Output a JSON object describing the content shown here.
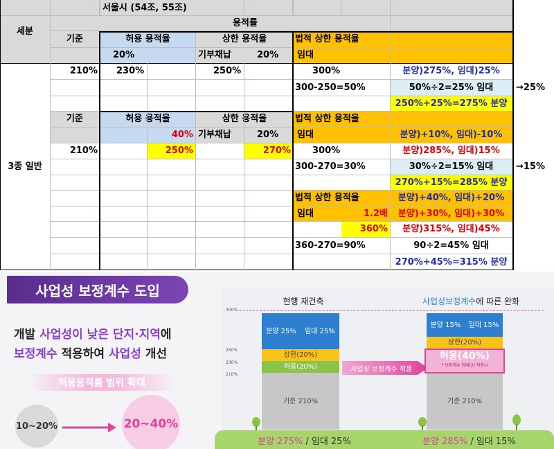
{
  "table": {
    "header": {
      "seoul": "서울시 (54조, 55조)",
      "floor_area_ratio": "용적률",
      "category": "세분",
      "standard": "기준",
      "allowed": "허용 용적율",
      "upper": "상한 용적율",
      "legal_upper": "법적 상한 용적율",
      "allowed_pct": "20%",
      "donation": "기부채납",
      "donation_pct": "20%",
      "rental": "임대"
    },
    "zone": "3종 일반",
    "block1": {
      "base": "210%",
      "allowed": "230%",
      "upper": "250%",
      "legal": "300%",
      "result": "분양)275%, 임대)25%",
      "calc": "300-250=50%",
      "half": "50%÷2=25% 임대",
      "arrow": "→25%",
      "total": "250%+25%=275% 분양"
    },
    "block2": {
      "standard": "기준",
      "allowed": "허용 용적율",
      "upper": "상한 용적율",
      "legal_upper": "법적 상한 용적율",
      "allowed_pct": "40%",
      "donation": "기부채납",
      "donation_pct": "20%",
      "rental": "임대",
      "change": "분양)+10%, 임대)-10%",
      "base": "210%",
      "allowed_val": "250%",
      "upper_val": "270%",
      "legal": "300%",
      "result": "분양)285%, 임대)15%",
      "calc": "300-270=30%",
      "half": "30%÷2=15% 임대",
      "arrow": "→15%",
      "total": "270%+15%=285% 분양"
    },
    "block3": {
      "legal_upper": "법적 상한 용적율",
      "change1": "분양)+40%, 임대)+20%",
      "rental": "임대",
      "multiplier": "1.2배",
      "change2": "분양)+30%, 임대)+30%",
      "legal_val": "360%",
      "result": "분양)315%, 임대)45%",
      "calc": "360-270=90%",
      "half": "90÷2=45% 임대",
      "total": "270%+45%=315% 분양"
    }
  },
  "info": {
    "title": "사업성 보정계수 도입",
    "line1_a": "개발 ",
    "line1_b": "사업성이 낮은 단지·지역",
    "line1_c": "에",
    "line2_a": "보정계수",
    "line2_b": " 적용하여 ",
    "line2_c": "사업성",
    "line2_d": " 개선",
    "range_label": "허용용적률 범위 확대",
    "from": "10~20%",
    "to": "20~40%",
    "current_label": "현행 재건축",
    "new_label_a": "사업성보정계수",
    "new_label_b": "에 따른 완화",
    "axis": [
      "300%",
      "250%",
      "230%",
      "210%"
    ],
    "left": {
      "sale": "분양 25%",
      "rent": "임대 25%",
      "upper": "상한(20%)",
      "allowed": "허용(20%)",
      "base": "기준 210%",
      "ground_a": "분양 275%",
      "ground_b": " / 임대 25%"
    },
    "apply_label": "사업성 보정계수 적용",
    "right": {
      "sale": "분양 15%",
      "rent": "임대 15%",
      "upper": "상한(20%)",
      "allowed": "허용(40%)",
      "note": "* 보정계수 최대(2) 적용시",
      "base": "기준 210%",
      "ground_a": "분양 285%",
      "ground_b": " / 임대 15%"
    },
    "colors": {
      "purple": "#5a2d8c",
      "pink": "#e0429a",
      "blue": "#2f7fd0",
      "green": "#8bc34a",
      "yellow": "#f7c21a",
      "gray": "#bdbdbd"
    }
  }
}
